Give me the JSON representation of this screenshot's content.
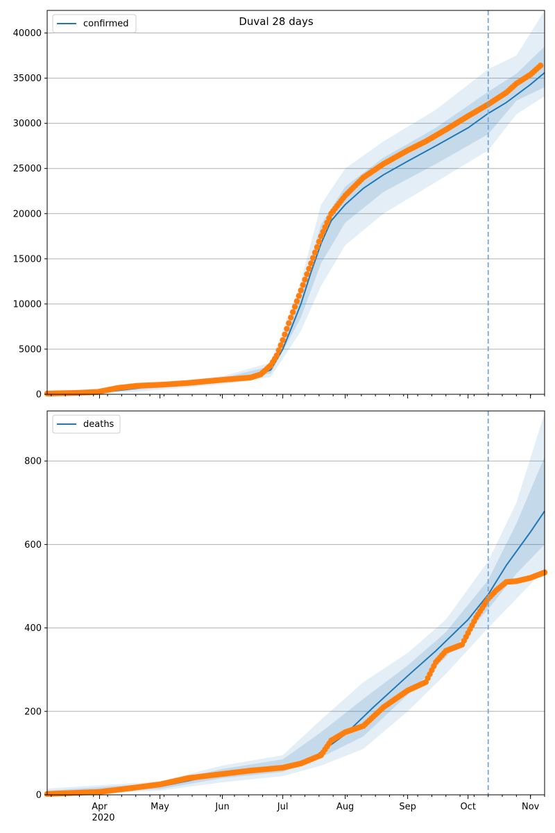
{
  "chart_data": [
    {
      "type": "line",
      "title": "Duval 28 days",
      "legend": [
        "confirmed"
      ],
      "legend_position": "top-left",
      "grid": "y-major",
      "x_range": [
        "2020-03-06",
        "2020-11-08"
      ],
      "ylim": [
        0,
        42500
      ],
      "yticks": [
        0,
        5000,
        10000,
        15000,
        20000,
        25000,
        30000,
        35000,
        40000
      ],
      "forecast_start": "2020-10-11",
      "series": [
        {
          "name": "confirmed",
          "kind": "model-median-line",
          "x": [
            "2020-03-06",
            "2020-03-20",
            "2020-04-01",
            "2020-04-15",
            "2020-05-01",
            "2020-05-15",
            "2020-06-01",
            "2020-06-15",
            "2020-06-25",
            "2020-07-01",
            "2020-07-05",
            "2020-07-10",
            "2020-07-15",
            "2020-07-20",
            "2020-07-25",
            "2020-08-01",
            "2020-08-10",
            "2020-08-20",
            "2020-09-01",
            "2020-09-15",
            "2020-10-01",
            "2020-10-11",
            "2020-10-20",
            "2020-11-01",
            "2020-11-08"
          ],
          "y": [
            50,
            80,
            180,
            550,
            1000,
            1200,
            1550,
            1800,
            2700,
            5000,
            7200,
            10000,
            13500,
            16700,
            19200,
            21000,
            22800,
            24300,
            25800,
            27500,
            29500,
            31100,
            32300,
            34300,
            35600
          ]
        },
        {
          "name": "observed",
          "kind": "points",
          "x": [
            "2020-03-06",
            "2020-03-20",
            "2020-03-31",
            "2020-04-10",
            "2020-04-20",
            "2020-05-01",
            "2020-05-15",
            "2020-06-01",
            "2020-06-15",
            "2020-06-20",
            "2020-06-25",
            "2020-06-28",
            "2020-07-01",
            "2020-07-05",
            "2020-07-10",
            "2020-07-15",
            "2020-07-20",
            "2020-07-25",
            "2020-08-01",
            "2020-08-10",
            "2020-08-20",
            "2020-09-01",
            "2020-09-10",
            "2020-09-20",
            "2020-10-01",
            "2020-10-11",
            "2020-10-20",
            "2020-10-25",
            "2020-11-01",
            "2020-11-06"
          ],
          "y": [
            80,
            150,
            250,
            700,
            950,
            1050,
            1250,
            1600,
            1850,
            2200,
            3200,
            4300,
            6000,
            8500,
            11500,
            14500,
            17500,
            20000,
            22000,
            24000,
            25500,
            27000,
            28000,
            29300,
            30800,
            32100,
            33400,
            34400,
            35400,
            36400
          ]
        }
      ],
      "uncertainty_bands": {
        "x": [
          "2020-03-06",
          "2020-04-15",
          "2020-06-01",
          "2020-06-25",
          "2020-07-10",
          "2020-07-20",
          "2020-08-01",
          "2020-08-20",
          "2020-09-15",
          "2020-10-11",
          "2020-10-25",
          "2020-11-08"
        ],
        "upper_outer": [
          200,
          900,
          2000,
          3500,
          12500,
          21000,
          25000,
          28000,
          31500,
          36000,
          37500,
          42500
        ],
        "lower_outer": [
          0,
          200,
          1100,
          1900,
          7000,
          12000,
          16500,
          20000,
          23500,
          27000,
          31000,
          33000
        ],
        "upper_inner": [
          120,
          700,
          1800,
          3100,
          11200,
          18800,
          23000,
          26200,
          29500,
          33500,
          35500,
          38500
        ],
        "lower_inner": [
          20,
          400,
          1300,
          2300,
          8500,
          14500,
          19000,
          22400,
          25500,
          28800,
          32500,
          34000
        ]
      }
    },
    {
      "type": "line",
      "legend": [
        "deaths"
      ],
      "legend_position": "top-left",
      "grid": "y-major",
      "x_range": [
        "2020-03-06",
        "2020-11-08"
      ],
      "ylim": [
        0,
        920
      ],
      "yticks": [
        0,
        200,
        400,
        600,
        800
      ],
      "xticks": [
        "Apr",
        "May",
        "Jun",
        "Jul",
        "Aug",
        "Sep",
        "Oct",
        "Nov"
      ],
      "xtick_year": "2020",
      "forecast_start": "2020-10-11",
      "series": [
        {
          "name": "deaths",
          "kind": "model-median-line",
          "x": [
            "2020-03-06",
            "2020-04-01",
            "2020-05-01",
            "2020-06-01",
            "2020-07-01",
            "2020-07-15",
            "2020-08-01",
            "2020-08-15",
            "2020-09-01",
            "2020-09-15",
            "2020-10-01",
            "2020-10-11",
            "2020-10-20",
            "2020-11-01",
            "2020-11-08"
          ],
          "y": [
            2,
            5,
            20,
            50,
            68,
            85,
            145,
            210,
            285,
            345,
            420,
            480,
            550,
            630,
            680
          ]
        },
        {
          "name": "observed",
          "kind": "points",
          "x": [
            "2020-03-06",
            "2020-04-01",
            "2020-04-15",
            "2020-05-01",
            "2020-05-15",
            "2020-06-01",
            "2020-06-15",
            "2020-07-01",
            "2020-07-10",
            "2020-07-20",
            "2020-07-25",
            "2020-08-01",
            "2020-08-10",
            "2020-08-20",
            "2020-09-01",
            "2020-09-10",
            "2020-09-15",
            "2020-09-20",
            "2020-09-28",
            "2020-10-05",
            "2020-10-11",
            "2020-10-15",
            "2020-10-20",
            "2020-10-25",
            "2020-11-01",
            "2020-11-08"
          ],
          "y": [
            2,
            7,
            15,
            25,
            40,
            50,
            58,
            65,
            75,
            95,
            130,
            150,
            165,
            210,
            250,
            270,
            318,
            345,
            360,
            425,
            470,
            490,
            510,
            512,
            520,
            533
          ]
        }
      ],
      "uncertainty_bands": {
        "x": [
          "2020-03-06",
          "2020-05-01",
          "2020-06-01",
          "2020-07-01",
          "2020-07-20",
          "2020-08-10",
          "2020-09-01",
          "2020-09-20",
          "2020-10-11",
          "2020-10-25",
          "2020-11-08"
        ],
        "upper_outer": [
          15,
          32,
          70,
          95,
          180,
          270,
          340,
          420,
          560,
          700,
          915
        ],
        "lower_outer": [
          0,
          10,
          30,
          45,
          70,
          110,
          200,
          290,
          400,
          470,
          540
        ],
        "upper_inner": [
          10,
          28,
          62,
          85,
          150,
          230,
          310,
          390,
          515,
          650,
          810
        ],
        "lower_inner": [
          1,
          14,
          40,
          55,
          90,
          140,
          240,
          330,
          445,
          530,
          600
        ]
      }
    }
  ],
  "colors": {
    "model_line": "#1f77b4",
    "band": "#1f77b4",
    "points": "#ff7f0e",
    "forecast_line": "#6fa8dc",
    "grid": "#b0b0b0"
  }
}
